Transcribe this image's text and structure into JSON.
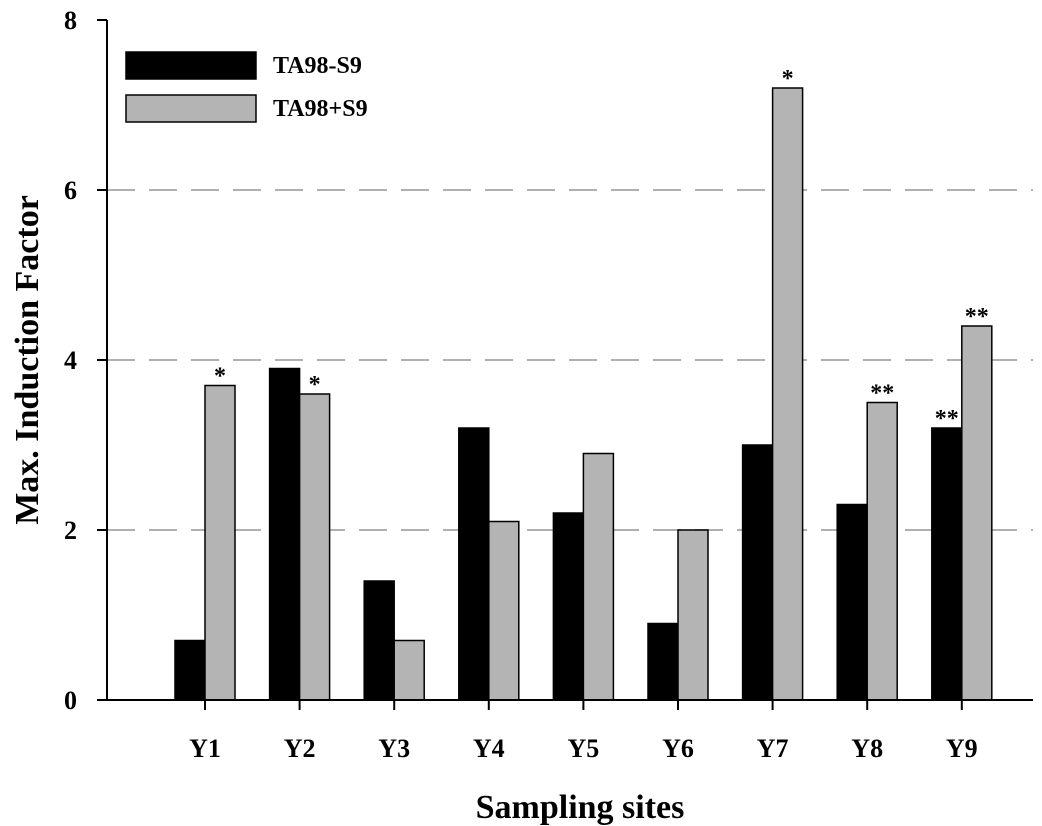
{
  "chart_data": {
    "type": "bar",
    "xlabel": "Sampling sites",
    "ylabel": "Max. Induction Factor",
    "ylim": [
      0,
      8
    ],
    "yticks": [
      0,
      2,
      4,
      6,
      8
    ],
    "grid": "horizontal dashed",
    "legend_position": "top-left",
    "categories": [
      "Y1",
      "Y2",
      "Y3",
      "Y4",
      "Y5",
      "Y6",
      "Y7",
      "Y8",
      "Y9"
    ],
    "series": [
      {
        "name": "TA98-S9",
        "color": "#000000",
        "values": [
          0.7,
          3.9,
          1.4,
          3.2,
          2.2,
          0.9,
          3.0,
          2.3,
          3.2
        ],
        "annotations": [
          "",
          "",
          "",
          "",
          "",
          "",
          "",
          "",
          "**"
        ]
      },
      {
        "name": "TA98+S9",
        "color": "#b4b4b4",
        "values": [
          3.7,
          3.6,
          0.7,
          2.1,
          2.9,
          2.0,
          7.2,
          3.5,
          4.4
        ],
        "annotations": [
          "*",
          "*",
          "",
          "",
          "",
          "",
          "*",
          "**",
          "**"
        ]
      }
    ]
  }
}
